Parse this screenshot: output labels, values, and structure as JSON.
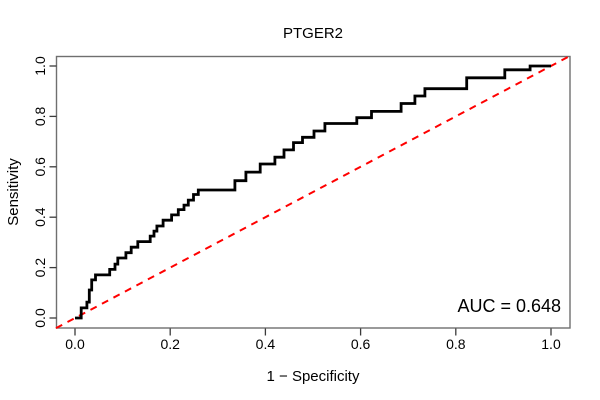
{
  "figure": {
    "background_color": "#ffffff",
    "frame_color": "#6f6f6f",
    "tick_color": "#3a3a3a",
    "text_color": "#000000"
  },
  "chart_data": {
    "type": "line",
    "subtype": "roc-step-curve",
    "title": "PTGER2",
    "xlabel": "1 − Specificity",
    "ylabel": "Sensitivity",
    "xlim": [
      0,
      1
    ],
    "ylim": [
      0,
      1
    ],
    "grid": false,
    "legend_position": "none",
    "x_ticks": [
      0,
      0.2,
      0.4,
      0.6,
      0.8,
      1.0
    ],
    "x_tick_labels": [
      "0.0",
      "0.2",
      "0.4",
      "0.6",
      "0.8",
      "1.0"
    ],
    "y_ticks": [
      0,
      0.2,
      0.4,
      0.6,
      0.8,
      1.0
    ],
    "y_tick_labels": [
      "0.0",
      "0.2",
      "0.4",
      "0.6",
      "0.8",
      "1.0"
    ],
    "annotation": {
      "text": "AUC = 0.648",
      "auc_value": 0.648,
      "position": "bottom-right"
    },
    "series": [
      {
        "name": "ROC curve",
        "color": "#000000",
        "style": "solid",
        "line_width": 2.8,
        "points": [
          [
            0,
            0
          ],
          [
            0.013,
            0
          ],
          [
            0.013,
            0.04
          ],
          [
            0.025,
            0.04
          ],
          [
            0.025,
            0.063
          ],
          [
            0.03,
            0.063
          ],
          [
            0.03,
            0.111
          ],
          [
            0.035,
            0.111
          ],
          [
            0.035,
            0.151
          ],
          [
            0.043,
            0.151
          ],
          [
            0.043,
            0.171
          ],
          [
            0.073,
            0.171
          ],
          [
            0.073,
            0.193
          ],
          [
            0.084,
            0.193
          ],
          [
            0.084,
            0.214
          ],
          [
            0.09,
            0.214
          ],
          [
            0.09,
            0.238
          ],
          [
            0.107,
            0.238
          ],
          [
            0.107,
            0.259
          ],
          [
            0.118,
            0.259
          ],
          [
            0.118,
            0.281
          ],
          [
            0.132,
            0.281
          ],
          [
            0.132,
            0.303
          ],
          [
            0.158,
            0.303
          ],
          [
            0.158,
            0.325
          ],
          [
            0.166,
            0.325
          ],
          [
            0.166,
            0.345
          ],
          [
            0.172,
            0.345
          ],
          [
            0.172,
            0.365
          ],
          [
            0.185,
            0.365
          ],
          [
            0.185,
            0.388
          ],
          [
            0.203,
            0.388
          ],
          [
            0.203,
            0.409
          ],
          [
            0.217,
            0.409
          ],
          [
            0.217,
            0.43
          ],
          [
            0.229,
            0.43
          ],
          [
            0.229,
            0.448
          ],
          [
            0.238,
            0.448
          ],
          [
            0.238,
            0.468
          ],
          [
            0.249,
            0.468
          ],
          [
            0.249,
            0.49
          ],
          [
            0.259,
            0.49
          ],
          [
            0.259,
            0.508
          ],
          [
            0.336,
            0.508
          ],
          [
            0.336,
            0.545
          ],
          [
            0.359,
            0.545
          ],
          [
            0.359,
            0.579
          ],
          [
            0.389,
            0.579
          ],
          [
            0.389,
            0.611
          ],
          [
            0.42,
            0.611
          ],
          [
            0.42,
            0.638
          ],
          [
            0.439,
            0.638
          ],
          [
            0.439,
            0.667
          ],
          [
            0.459,
            0.667
          ],
          [
            0.459,
            0.696
          ],
          [
            0.478,
            0.696
          ],
          [
            0.478,
            0.717
          ],
          [
            0.502,
            0.717
          ],
          [
            0.502,
            0.742
          ],
          [
            0.525,
            0.742
          ],
          [
            0.525,
            0.772
          ],
          [
            0.592,
            0.772
          ],
          [
            0.592,
            0.795
          ],
          [
            0.623,
            0.795
          ],
          [
            0.623,
            0.82
          ],
          [
            0.685,
            0.82
          ],
          [
            0.685,
            0.851
          ],
          [
            0.714,
            0.851
          ],
          [
            0.714,
            0.881
          ],
          [
            0.735,
            0.881
          ],
          [
            0.735,
            0.91
          ],
          [
            0.823,
            0.91
          ],
          [
            0.823,
            0.953
          ],
          [
            0.903,
            0.953
          ],
          [
            0.903,
            0.985
          ],
          [
            0.956,
            0.985
          ],
          [
            0.956,
            1
          ],
          [
            1,
            1
          ]
        ]
      },
      {
        "name": "Reference diagonal",
        "color": "#ff0000",
        "style": "dashed",
        "line_width": 2,
        "points": [
          [
            -0.04,
            -0.04
          ],
          [
            1.04,
            1.04
          ]
        ]
      }
    ]
  }
}
